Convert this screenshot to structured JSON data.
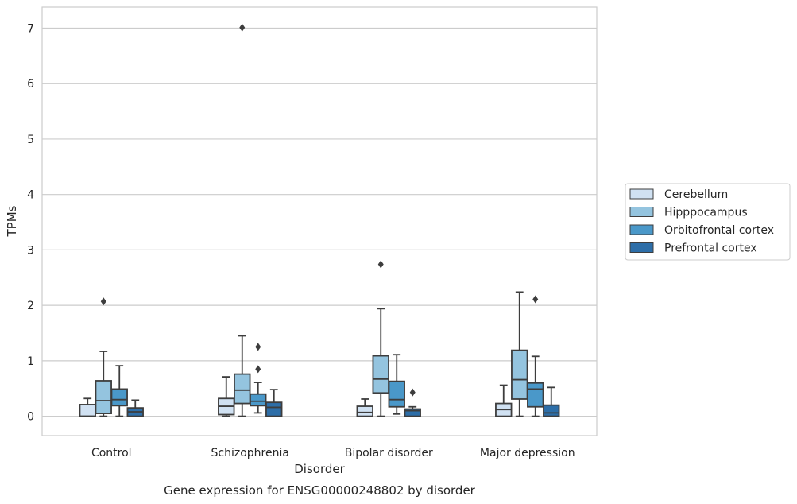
{
  "chart_data": {
    "type": "box",
    "xlabel": "Disorder",
    "ylabel": "TPMs",
    "caption": "Gene expression for ENSG00000248802 by disorder",
    "ylim": [
      -0.35,
      7.38
    ],
    "yticks": [
      0,
      1,
      2,
      3,
      4,
      5,
      6,
      7
    ],
    "grid": "horizontal",
    "legend_placement": "right",
    "categories": [
      "Control",
      "Schizophrenia",
      "Bipolar disorder",
      "Major depression"
    ],
    "series": [
      {
        "name": "Cerebellum",
        "color": "#d0e1f2",
        "boxes": [
          {
            "whislo": 0.0,
            "q1": 0.0,
            "med": 0.0,
            "q3": 0.21,
            "whishi": 0.32,
            "fliers": []
          },
          {
            "whislo": 0.0,
            "q1": 0.03,
            "med": 0.18,
            "q3": 0.32,
            "whishi": 0.71,
            "fliers": []
          },
          {
            "whislo": 0.0,
            "q1": 0.0,
            "med": 0.07,
            "q3": 0.18,
            "whishi": 0.31,
            "fliers": []
          },
          {
            "whislo": 0.0,
            "q1": 0.0,
            "med": 0.12,
            "q3": 0.23,
            "whishi": 0.56,
            "fliers": []
          }
        ]
      },
      {
        "name": "Hipppocampus",
        "color": "#94c4df",
        "boxes": [
          {
            "whislo": 0.0,
            "q1": 0.05,
            "med": 0.28,
            "q3": 0.64,
            "whishi": 1.17,
            "fliers": [
              2.07
            ]
          },
          {
            "whislo": 0.0,
            "q1": 0.23,
            "med": 0.47,
            "q3": 0.76,
            "whishi": 1.45,
            "fliers": [
              7.01
            ]
          },
          {
            "whislo": 0.0,
            "q1": 0.42,
            "med": 0.67,
            "q3": 1.09,
            "whishi": 1.94,
            "fliers": [
              2.74
            ]
          },
          {
            "whislo": 0.0,
            "q1": 0.31,
            "med": 0.66,
            "q3": 1.19,
            "whishi": 2.24,
            "fliers": []
          }
        ]
      },
      {
        "name": "Orbitofrontal cortex",
        "color": "#4a98c9",
        "boxes": [
          {
            "whislo": 0.0,
            "q1": 0.19,
            "med": 0.3,
            "q3": 0.49,
            "whishi": 0.91,
            "fliers": []
          },
          {
            "whislo": 0.06,
            "q1": 0.19,
            "med": 0.27,
            "q3": 0.4,
            "whishi": 0.61,
            "fliers": [
              0.85,
              1.25
            ]
          },
          {
            "whislo": 0.04,
            "q1": 0.17,
            "med": 0.3,
            "q3": 0.63,
            "whishi": 1.11,
            "fliers": []
          },
          {
            "whislo": 0.0,
            "q1": 0.17,
            "med": 0.49,
            "q3": 0.6,
            "whishi": 1.08,
            "fliers": [
              2.11
            ]
          }
        ]
      },
      {
        "name": "Prefrontal cortex",
        "color": "#2d6ea8",
        "boxes": [
          {
            "whislo": 0.0,
            "q1": 0.0,
            "med": 0.08,
            "q3": 0.15,
            "whishi": 0.29,
            "fliers": []
          },
          {
            "whislo": 0.0,
            "q1": 0.0,
            "med": 0.16,
            "q3": 0.25,
            "whishi": 0.48,
            "fliers": []
          },
          {
            "whislo": 0.0,
            "q1": 0.0,
            "med": 0.1,
            "q3": 0.13,
            "whishi": 0.17,
            "fliers": [
              0.43
            ]
          },
          {
            "whislo": 0.0,
            "q1": 0.0,
            "med": 0.06,
            "q3": 0.2,
            "whishi": 0.52,
            "fliers": []
          }
        ]
      }
    ]
  }
}
